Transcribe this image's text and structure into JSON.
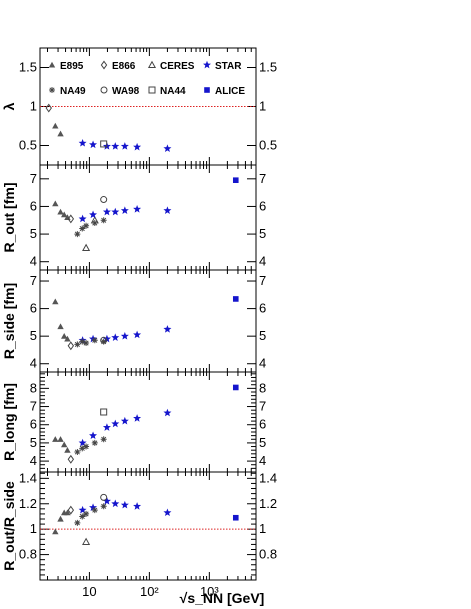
{
  "chart_data": {
    "type": "scatter",
    "xscale": "log",
    "xlim": [
      1.5,
      6000
    ],
    "xlabel": "√s_NN [GeV]",
    "xticks": [
      {
        "value": 10,
        "label": "10"
      },
      {
        "value": 100,
        "label": "10²"
      },
      {
        "value": 1000,
        "label": "10³"
      }
    ],
    "legend": {
      "placement": "top",
      "entries": [
        {
          "label": "E895",
          "marker": "triangle-filled",
          "color": "#555555"
        },
        {
          "label": "E866",
          "marker": "diamond-open",
          "color": "#444444"
        },
        {
          "label": "CERES",
          "marker": "triangle-open",
          "color": "#444444"
        },
        {
          "label": "STAR",
          "marker": "star",
          "color": "#1515cc"
        },
        {
          "label": "NA49",
          "marker": "asterisk",
          "color": "#444444"
        },
        {
          "label": "WA98",
          "marker": "circle-open",
          "color": "#444444"
        },
        {
          "label": "NA44",
          "marker": "square-open",
          "color": "#444444"
        },
        {
          "label": "ALICE",
          "marker": "square-filled",
          "color": "#1515cc"
        }
      ]
    },
    "panels": [
      {
        "ylabel": "λ",
        "ylim": [
          0.25,
          1.75
        ],
        "yticks": [
          0.5,
          1,
          1.5
        ],
        "yticklabels": [
          "0.5",
          "1",
          "1.5"
        ],
        "reference_line": 1,
        "series": [
          {
            "name": "E895",
            "x": [
              2.7,
              3.3
            ],
            "y": [
              0.75,
              0.65
            ]
          },
          {
            "name": "E866",
            "x": [
              2.1
            ],
            "y": [
              0.98
            ]
          },
          {
            "name": "STAR",
            "x": [
              7.7,
              11.5,
              19.6,
              27,
              39,
              62.4,
              200
            ],
            "y": [
              0.53,
              0.51,
              0.49,
              0.49,
              0.49,
              0.48,
              0.46
            ]
          },
          {
            "name": "NA44",
            "x": [
              17.3
            ],
            "y": [
              0.52
            ]
          }
        ]
      },
      {
        "ylabel": "R_out [fm]",
        "ylim": [
          3.7,
          7.5
        ],
        "yticks": [
          4,
          5,
          6,
          7
        ],
        "yticklabels": [
          "4",
          "5",
          "6",
          "7"
        ],
        "series": [
          {
            "name": "E895",
            "x": [
              2.7,
              3.3,
              3.8,
              4.3
            ],
            "y": [
              6.1,
              5.8,
              5.7,
              5.6
            ]
          },
          {
            "name": "E866",
            "x": [
              4.9
            ],
            "y": [
              5.55
            ]
          },
          {
            "name": "CERES",
            "x": [
              8.8,
              12.3
            ],
            "y": [
              4.5,
              5.5
            ]
          },
          {
            "name": "STAR",
            "x": [
              7.7,
              11.5,
              19.6,
              27,
              39,
              62.4,
              200
            ],
            "y": [
              5.55,
              5.7,
              5.8,
              5.8,
              5.85,
              5.9,
              5.85
            ]
          },
          {
            "name": "NA49",
            "x": [
              6.3,
              7.6,
              8.8,
              12.3,
              17.3
            ],
            "y": [
              5.0,
              5.2,
              5.3,
              5.4,
              5.5
            ]
          },
          {
            "name": "WA98",
            "x": [
              17.3
            ],
            "y": [
              6.25
            ]
          },
          {
            "name": "ALICE",
            "x": [
              2760
            ],
            "y": [
              6.95
            ]
          }
        ]
      },
      {
        "ylabel": "R_side [fm]",
        "ylim": [
          3.7,
          7.4
        ],
        "yticks": [
          4,
          5,
          6,
          7
        ],
        "yticklabels": [
          "4",
          "5",
          "6",
          "7"
        ],
        "series": [
          {
            "name": "E895",
            "x": [
              2.7,
              3.3,
              3.8,
              4.3
            ],
            "y": [
              6.25,
              5.35,
              5.0,
              4.9
            ]
          },
          {
            "name": "E866",
            "x": [
              4.9
            ],
            "y": [
              4.65
            ]
          },
          {
            "name": "STAR",
            "x": [
              7.7,
              11.5,
              19.6,
              27,
              39,
              62.4,
              200
            ],
            "y": [
              4.85,
              4.9,
              4.9,
              4.95,
              5.0,
              5.05,
              5.25
            ]
          },
          {
            "name": "NA49",
            "x": [
              6.3,
              7.6,
              8.8,
              12.3,
              17.3
            ],
            "y": [
              4.7,
              4.8,
              4.75,
              4.85,
              4.8
            ]
          },
          {
            "name": "WA98",
            "x": [
              17.3
            ],
            "y": [
              4.85
            ]
          },
          {
            "name": "ALICE",
            "x": [
              2760
            ],
            "y": [
              6.35
            ]
          }
        ]
      },
      {
        "ylabel": "R_long [fm]",
        "ylim": [
          3.4,
          8.9
        ],
        "yticks": [
          4,
          5,
          6,
          7,
          8
        ],
        "yticklabels": [
          "4",
          "5",
          "6",
          "7",
          "8"
        ],
        "series": [
          {
            "name": "E895",
            "x": [
              2.7,
              3.3,
              3.8,
              4.3
            ],
            "y": [
              5.2,
              5.2,
              4.9,
              4.6
            ]
          },
          {
            "name": "E866",
            "x": [
              4.9
            ],
            "y": [
              4.1
            ]
          },
          {
            "name": "STAR",
            "x": [
              7.7,
              11.5,
              19.6,
              27,
              39,
              62.4,
              200
            ],
            "y": [
              5.0,
              5.4,
              5.85,
              6.05,
              6.2,
              6.35,
              6.65
            ]
          },
          {
            "name": "NA49",
            "x": [
              6.3,
              7.6,
              8.8,
              12.3,
              17.3
            ],
            "y": [
              4.5,
              4.7,
              4.8,
              5.0,
              5.2
            ]
          },
          {
            "name": "NA44",
            "x": [
              17.3
            ],
            "y": [
              6.7
            ]
          },
          {
            "name": "ALICE",
            "x": [
              2760
            ],
            "y": [
              8.05
            ]
          }
        ]
      },
      {
        "ylabel": "R_out/R_side",
        "ylim": [
          0.6,
          1.45
        ],
        "yticks": [
          0.8,
          1,
          1.2,
          1.4
        ],
        "yticklabels": [
          "0.8",
          "1",
          "1.2",
          "1.4"
        ],
        "reference_line": 1,
        "series": [
          {
            "name": "E895",
            "x": [
              2.7,
              3.3,
              3.8,
              4.3
            ],
            "y": [
              0.98,
              1.08,
              1.13,
              1.13
            ]
          },
          {
            "name": "E866",
            "x": [
              4.9
            ],
            "y": [
              1.15
            ]
          },
          {
            "name": "CERES",
            "x": [
              8.8
            ],
            "y": [
              0.9
            ]
          },
          {
            "name": "STAR",
            "x": [
              7.7,
              11.5,
              19.6,
              27,
              39,
              62.4,
              200
            ],
            "y": [
              1.15,
              1.17,
              1.22,
              1.2,
              1.19,
              1.18,
              1.13
            ]
          },
          {
            "name": "NA49",
            "x": [
              6.3,
              7.6,
              8.8,
              12.3,
              17.3
            ],
            "y": [
              1.05,
              1.1,
              1.12,
              1.15,
              1.18
            ]
          },
          {
            "name": "WA98",
            "x": [
              17.3
            ],
            "y": [
              1.25
            ]
          },
          {
            "name": "ALICE",
            "x": [
              2760
            ],
            "y": [
              1.09
            ]
          }
        ]
      }
    ]
  }
}
